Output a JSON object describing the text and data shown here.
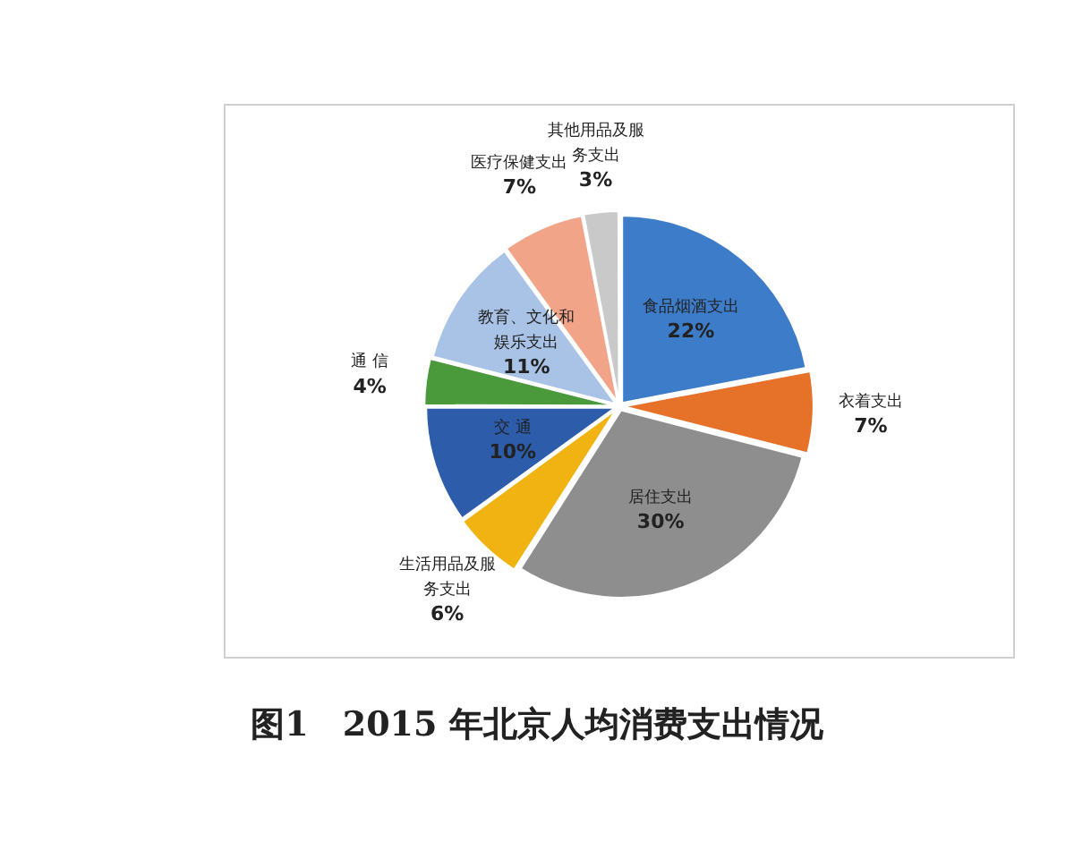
{
  "chart_data": {
    "type": "pie",
    "title": "图1　2015 年北京人均消费支出情况",
    "categories": [
      "食品烟酒支出",
      "衣着支出",
      "居住支出",
      "生活用品及服务支出",
      "交 通",
      "通 信",
      "教育、文化和娱乐支出",
      "医疗保健支出",
      "其他用品及服务支出"
    ],
    "values": [
      22,
      7,
      30,
      6,
      10,
      4,
      11,
      7,
      3
    ],
    "value_labels": [
      "22%",
      "7%",
      "30%",
      "6%",
      "10%",
      "4%",
      "11%",
      "7%",
      "3%"
    ],
    "colors": [
      "#3d7cc9",
      "#e6722a",
      "#8e8e8e",
      "#f1b311",
      "#2c5caa",
      "#4a9a3c",
      "#a8c3e6",
      "#f2a489",
      "#c9c9c9"
    ],
    "legend": false
  }
}
